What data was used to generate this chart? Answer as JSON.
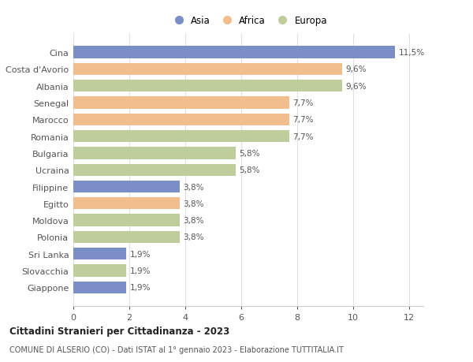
{
  "countries": [
    "Cina",
    "Costa d'Avorio",
    "Albania",
    "Senegal",
    "Marocco",
    "Romania",
    "Bulgaria",
    "Ucraina",
    "Filippine",
    "Egitto",
    "Moldova",
    "Polonia",
    "Sri Lanka",
    "Slovacchia",
    "Giappone"
  ],
  "values": [
    11.5,
    9.6,
    9.6,
    7.7,
    7.7,
    7.7,
    5.8,
    5.8,
    3.8,
    3.8,
    3.8,
    3.8,
    1.9,
    1.9,
    1.9
  ],
  "labels": [
    "11,5%",
    "9,6%",
    "9,6%",
    "7,7%",
    "7,7%",
    "7,7%",
    "5,8%",
    "5,8%",
    "3,8%",
    "3,8%",
    "3,8%",
    "3,8%",
    "1,9%",
    "1,9%",
    "1,9%"
  ],
  "continents": [
    "Asia",
    "Africa",
    "Europa",
    "Africa",
    "Africa",
    "Europa",
    "Europa",
    "Europa",
    "Asia",
    "Africa",
    "Europa",
    "Europa",
    "Asia",
    "Europa",
    "Asia"
  ],
  "colors": {
    "Asia": "#7b8ec8",
    "Africa": "#f2be8e",
    "Europa": "#bfcc9b"
  },
  "legend_labels": [
    "Asia",
    "Africa",
    "Europa"
  ],
  "title1": "Cittadini Stranieri per Cittadinanza - 2023",
  "title2": "COMUNE DI ALSERIO (CO) - Dati ISTAT al 1° gennaio 2023 - Elaborazione TUTTITALIA.IT",
  "xlim": [
    0,
    12.5
  ],
  "xticks": [
    0,
    2,
    4,
    6,
    8,
    10,
    12
  ],
  "background_color": "#ffffff",
  "bar_height": 0.72
}
